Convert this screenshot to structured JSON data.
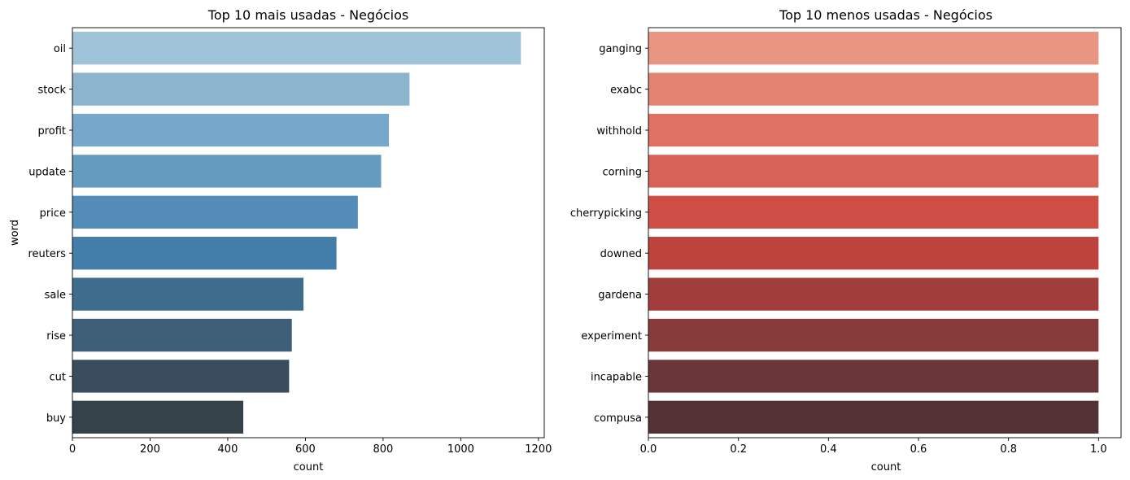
{
  "chart_data": [
    {
      "type": "bar",
      "orientation": "horizontal",
      "title": "Top 10 mais usadas - Negócios",
      "xlabel": "count",
      "ylabel": "word",
      "xlim": [
        0,
        1215
      ],
      "xticks": [
        0,
        200,
        400,
        600,
        800,
        1000,
        1200
      ],
      "xtick_labels": [
        "0",
        "200",
        "400",
        "600",
        "800",
        "1000",
        "1200"
      ],
      "categories": [
        "oil",
        "stock",
        "profit",
        "update",
        "price",
        "reuters",
        "sale",
        "rise",
        "cut",
        "buy"
      ],
      "values": [
        1155,
        868,
        815,
        795,
        735,
        680,
        595,
        565,
        558,
        440
      ],
      "colors": [
        "#9fc3d8",
        "#8cb4cf",
        "#78a8c9",
        "#669bc0",
        "#548cb8",
        "#437ea8",
        "#3e6c8d",
        "#3f5f78",
        "#3a4d5e",
        "#354249"
      ],
      "grid": false,
      "legend": "none"
    },
    {
      "type": "bar",
      "orientation": "horizontal",
      "title": "Top 10 menos usadas - Negócios",
      "xlabel": "count",
      "ylabel": "",
      "xlim": [
        0,
        1.05
      ],
      "xticks": [
        0,
        0.2,
        0.4,
        0.6,
        0.8,
        1.0
      ],
      "xtick_labels": [
        "0.0",
        "0.2",
        "0.4",
        "0.6",
        "0.8",
        "1.0"
      ],
      "categories": [
        "ganging",
        "exabc",
        "withhold",
        "corning",
        "cherrypicking",
        "downed",
        "gardena",
        "experiment",
        "incapable",
        "compusa"
      ],
      "values": [
        1,
        1,
        1,
        1,
        1,
        1,
        1,
        1,
        1,
        1
      ],
      "colors": [
        "#e89581",
        "#e38473",
        "#de7265",
        "#d66258",
        "#cf4e45",
        "#be433d",
        "#a13d3a",
        "#873c3b",
        "#6a3638",
        "#523235"
      ],
      "grid": false,
      "legend": "none"
    }
  ]
}
